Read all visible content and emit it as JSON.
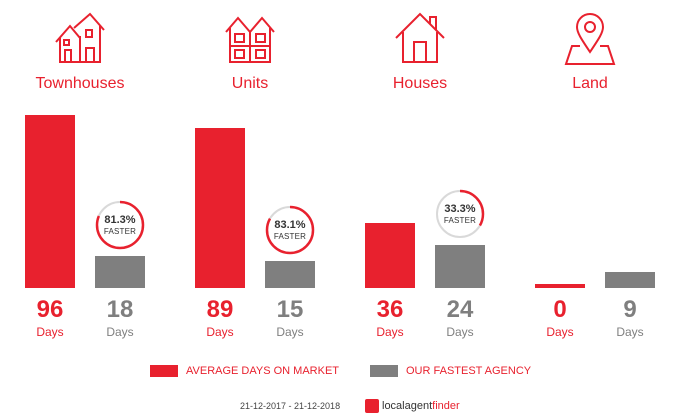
{
  "chart_data": {
    "type": "bar",
    "categories": [
      "Townhouses",
      "Units",
      "Houses",
      "Land"
    ],
    "series": [
      {
        "name": "AVERAGE DAYS ON MARKET",
        "values": [
          96,
          89,
          36,
          0
        ],
        "color": "#e8212e"
      },
      {
        "name": "OUR FASTEST AGENCY",
        "values": [
          18,
          15,
          24,
          9
        ],
        "color": "#7f7f7f"
      }
    ],
    "value_unit": "Days",
    "faster": [
      "81.3%",
      "83.1%",
      "33.3%",
      null
    ],
    "faster_fraction": [
      0.813,
      0.831,
      0.333,
      null
    ],
    "faster_label": "FASTER",
    "icons": [
      "townhouse-icon",
      "units-icon",
      "house-icon",
      "land-pin-icon"
    ],
    "ylim": [
      0,
      100
    ]
  },
  "footer": {
    "date_range": "21-12-2017 - 21-12-2018",
    "brand_part1": "localagent",
    "brand_part2": "finder"
  }
}
